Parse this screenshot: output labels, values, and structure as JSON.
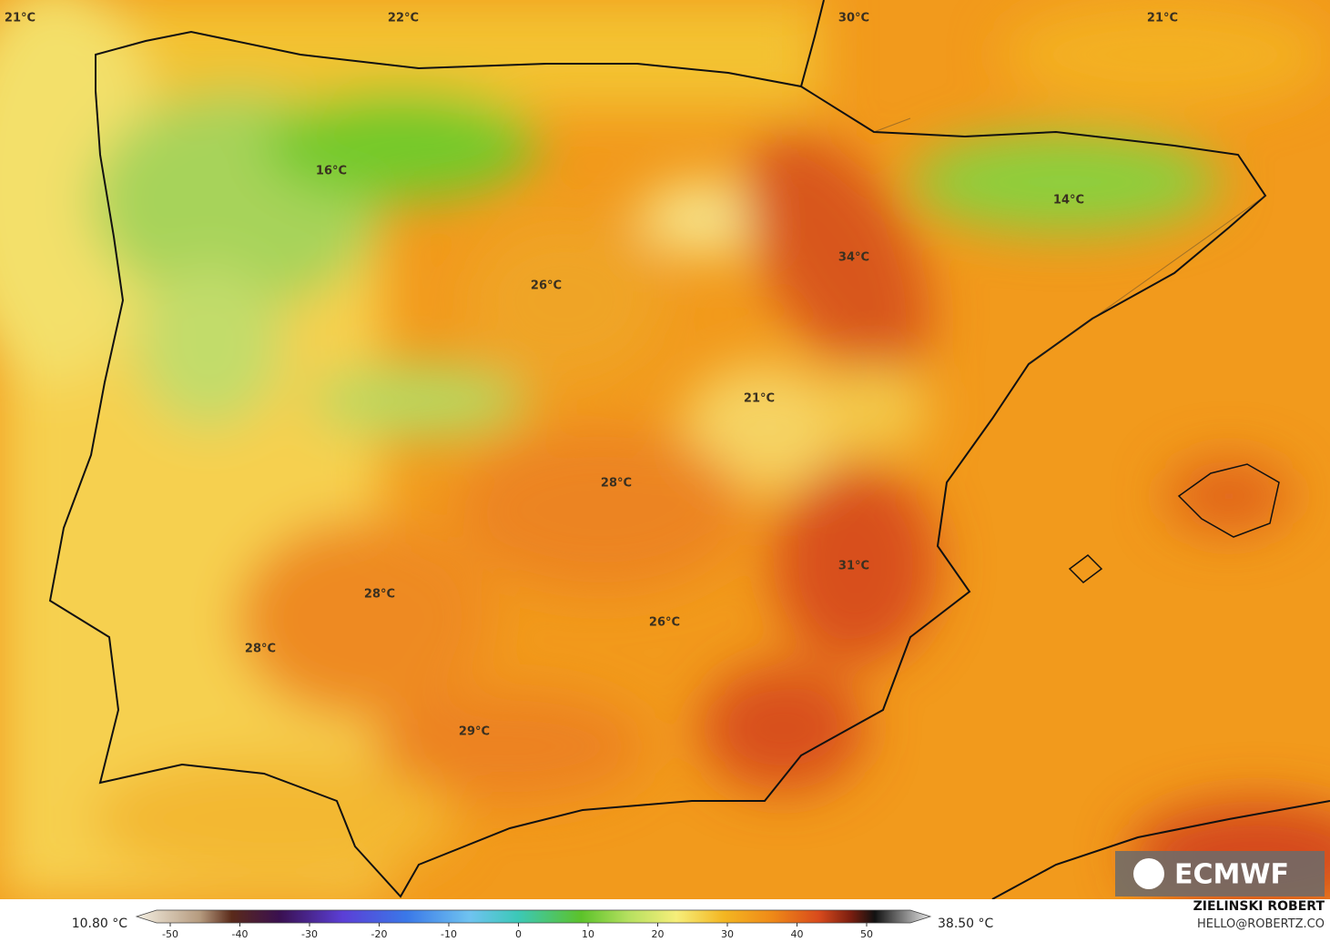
{
  "map": {
    "labels": [
      "21°C",
      "22°C",
      "30°C",
      "21°C",
      "16°C",
      "14°C",
      "34°C",
      "26°C",
      "21°C",
      "28°C",
      "31°C",
      "28°C",
      "26°C",
      "28°C",
      "29°C"
    ]
  },
  "logo": "ECMWF",
  "colorbar": {
    "min_label": "10.80 °C",
    "max_label": "38.50 °C",
    "ticks": [
      -50,
      -40,
      -30,
      -20,
      -10,
      0,
      10,
      20,
      30,
      40,
      50
    ]
  },
  "credit": {
    "author": "ZIELINSKI ROBERT",
    "contact": "HELLO@ROBERTZ.CO"
  }
}
